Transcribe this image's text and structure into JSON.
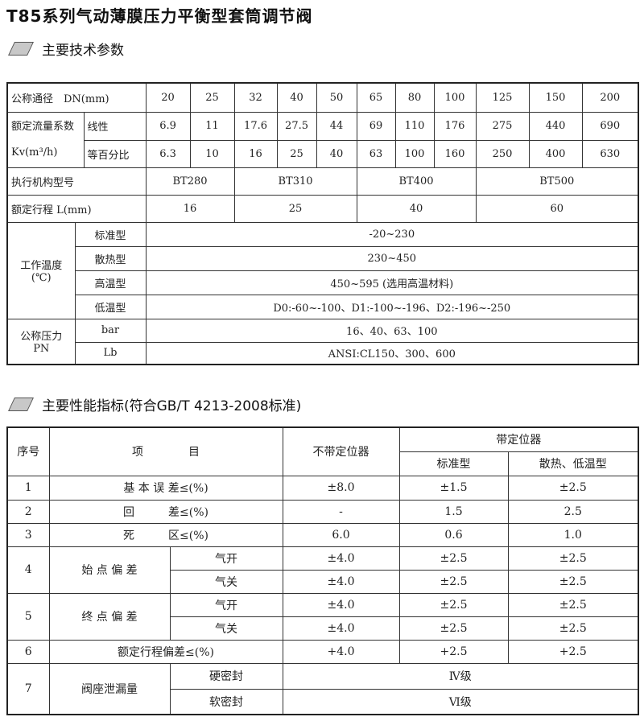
{
  "title": "T85系列气动薄膜压力平衡型套筒调节阀",
  "section1": "主要技术参数",
  "section2": "主要性能指标(符合GB/T 4213-2008标准)",
  "t1": {
    "dn_label": "公称通径　DN(mm)",
    "dn": [
      "20",
      "25",
      "32",
      "40",
      "50",
      "65",
      "80",
      "100",
      "125",
      "150",
      "200"
    ],
    "kv_label": "额定流量系数 Kv(m³/h)",
    "linear_label": "线性",
    "linear": [
      "6.9",
      "11",
      "17.6",
      "27.5",
      "44",
      "69",
      "110",
      "176",
      "275",
      "440",
      "690"
    ],
    "eq_label": "等百分比",
    "eq": [
      "6.3",
      "10",
      "16",
      "25",
      "40",
      "63",
      "100",
      "160",
      "250",
      "400",
      "630"
    ],
    "actuator_label": "执行机构型号",
    "actuators": [
      "BT280",
      "BT310",
      "BT400",
      "BT500"
    ],
    "stroke_label": "额定行程 L(mm)",
    "strokes": [
      "16",
      "25",
      "40",
      "60"
    ],
    "temp_label": "工作温度(℃)",
    "temps": [
      {
        "type": "标准型",
        "range": "-20~230"
      },
      {
        "type": "散热型",
        "range": "230~450"
      },
      {
        "type": "高温型",
        "range": "450~595 (选用高温材料)"
      },
      {
        "type": "低温型",
        "range": "D0:-60~-100、D1:-100~-196、D2:-196~-250"
      }
    ],
    "pn_label": "公称压力PN",
    "pn": [
      {
        "unit": "bar",
        "value": "16、40、63、100"
      },
      {
        "unit": "Lb",
        "value": "ANSI:CL150、300、600"
      }
    ]
  },
  "t2": {
    "h_no": "序号",
    "h_item": "项　　　　目",
    "h_nopos": "不带定位器",
    "h_pos": "带定位器",
    "h_std": "标准型",
    "h_heat": "散热、低温型",
    "r1": [
      "1",
      "基 本 误 差≤(%)",
      "±8.0",
      "±1.5",
      "±2.5"
    ],
    "r2": [
      "2",
      "回　　　差≤(%)",
      "-",
      "1.5",
      "2.5"
    ],
    "r3": [
      "3",
      "死　　　区≤(%)",
      "6.0",
      "0.6",
      "1.0"
    ],
    "r4": {
      "no": "4",
      "item": "始 点 偏 差",
      "a": [
        "气开",
        "±4.0",
        "±2.5",
        "±2.5"
      ],
      "b": [
        "气关",
        "±4.0",
        "±2.5",
        "±2.5"
      ]
    },
    "r5": {
      "no": "5",
      "item": "终 点 偏 差",
      "a": [
        "气开",
        "±4.0",
        "±2.5",
        "±2.5"
      ],
      "b": [
        "气关",
        "±4.0",
        "±2.5",
        "±2.5"
      ]
    },
    "r6": [
      "6",
      "额定行程偏差≤(%)",
      "+4.0",
      "+2.5",
      "+2.5"
    ],
    "r7": {
      "no": "7",
      "item": "阀座泄漏量",
      "a": [
        "硬密封",
        "Ⅳ级"
      ],
      "b": [
        "软密封",
        "Ⅵ级"
      ]
    }
  }
}
